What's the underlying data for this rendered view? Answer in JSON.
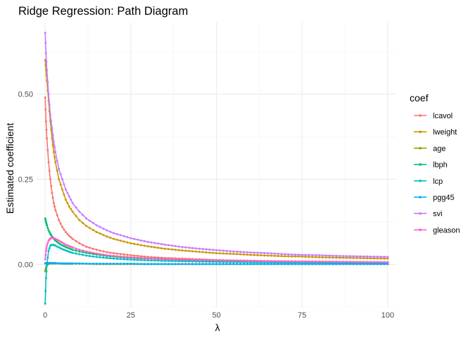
{
  "chart_data": {
    "type": "line",
    "title": "Ridge Regression: Path Diagram",
    "xlabel": "λ",
    "ylabel": "Estimated coefficient",
    "xlim": [
      -2.5,
      102.5
    ],
    "ylim": [
      -0.125,
      0.71
    ],
    "x_ticks": [
      0,
      25,
      50,
      75,
      100
    ],
    "x_tick_labels": [
      "0",
      "25",
      "50",
      "75",
      "100"
    ],
    "y_ticks": [
      0.0,
      0.25,
      0.5
    ],
    "y_tick_labels": [
      "0.00",
      "0.25",
      "0.50"
    ],
    "grid": true,
    "legend_title": "coef",
    "legend_position": "right",
    "x": [
      0,
      0.25,
      0.5,
      1,
      1.5,
      2,
      2.5,
      3,
      4,
      5,
      6,
      7,
      8,
      10,
      12,
      15,
      18,
      20,
      25,
      30,
      35,
      40,
      45,
      50,
      55,
      60,
      65,
      70,
      75,
      80,
      85,
      90,
      95,
      100
    ],
    "series": [
      {
        "name": "lcavol",
        "color": "#F8766D",
        "values": [
          0.49,
          0.42,
          0.37,
          0.3,
          0.25,
          0.21,
          0.18,
          0.16,
          0.13,
          0.11,
          0.095,
          0.084,
          0.075,
          0.062,
          0.052,
          0.043,
          0.036,
          0.033,
          0.027,
          0.022,
          0.019,
          0.017,
          0.015,
          0.013,
          0.012,
          0.011,
          0.01,
          0.0095,
          0.009,
          0.0085,
          0.008,
          0.0075,
          0.007,
          0.0068
        ]
      },
      {
        "name": "lweight",
        "color": "#CD9600",
        "values": [
          0.6,
          0.57,
          0.54,
          0.48,
          0.42,
          0.37,
          0.33,
          0.3,
          0.25,
          0.22,
          0.19,
          0.17,
          0.155,
          0.13,
          0.113,
          0.095,
          0.082,
          0.075,
          0.062,
          0.053,
          0.046,
          0.041,
          0.037,
          0.033,
          0.031,
          0.028,
          0.026,
          0.024,
          0.023,
          0.021,
          0.02,
          0.019,
          0.018,
          0.017
        ]
      },
      {
        "name": "age",
        "color": "#7CAE00",
        "values": [
          -0.02,
          -0.01,
          -0.003,
          0.002,
          0.003,
          0.003,
          0.003,
          0.003,
          0.003,
          0.002,
          0.002,
          0.002,
          0.002,
          0.002,
          0.002,
          0.001,
          0.001,
          0.001,
          0.001,
          0.001,
          0.001,
          0.001,
          0.001,
          0.001,
          0.001,
          0.001,
          0.001,
          0.001,
          0.001,
          0.001,
          0.001,
          0.001,
          0.001,
          0.001
        ]
      },
      {
        "name": "lbph",
        "color": "#00BE67",
        "values": [
          0.135,
          0.125,
          0.115,
          0.1,
          0.09,
          0.082,
          0.076,
          0.07,
          0.062,
          0.056,
          0.051,
          0.047,
          0.043,
          0.038,
          0.034,
          0.029,
          0.025,
          0.023,
          0.019,
          0.017,
          0.015,
          0.013,
          0.012,
          0.011,
          0.01,
          0.0093,
          0.0086,
          0.008,
          0.0075,
          0.0071,
          0.0067,
          0.0063,
          0.006,
          0.0057
        ]
      },
      {
        "name": "lcp",
        "color": "#00BFC4",
        "values": [
          -0.115,
          -0.04,
          0.0,
          0.04,
          0.055,
          0.058,
          0.057,
          0.055,
          0.05,
          0.045,
          0.041,
          0.037,
          0.034,
          0.03,
          0.026,
          0.022,
          0.019,
          0.017,
          0.014,
          0.012,
          0.0105,
          0.0093,
          0.0084,
          0.0076,
          0.007,
          0.0064,
          0.0059,
          0.0055,
          0.0052,
          0.0049,
          0.0046,
          0.0043,
          0.0041,
          0.0039
        ]
      },
      {
        "name": "pgg45",
        "color": "#00A9FF",
        "values": [
          0.003,
          0.004,
          0.004,
          0.004,
          0.004,
          0.004,
          0.004,
          0.004,
          0.003,
          0.003,
          0.003,
          0.003,
          0.003,
          0.003,
          0.002,
          0.002,
          0.002,
          0.002,
          0.002,
          0.001,
          0.001,
          0.001,
          0.001,
          0.001,
          0.001,
          0.001,
          0.001,
          0.001,
          0.001,
          0.001,
          0.001,
          0.001,
          0.001,
          0.001
        ]
      },
      {
        "name": "svi",
        "color": "#C77CFF",
        "values": [
          0.68,
          0.62,
          0.57,
          0.5,
          0.44,
          0.4,
          0.36,
          0.33,
          0.28,
          0.25,
          0.22,
          0.2,
          0.18,
          0.155,
          0.135,
          0.115,
          0.1,
          0.092,
          0.077,
          0.066,
          0.058,
          0.051,
          0.046,
          0.042,
          0.038,
          0.035,
          0.033,
          0.03,
          0.028,
          0.027,
          0.025,
          0.024,
          0.023,
          0.022
        ]
      },
      {
        "name": "gleason",
        "color": "#FF61CC",
        "values": [
          0.015,
          0.04,
          0.055,
          0.07,
          0.076,
          0.078,
          0.077,
          0.075,
          0.07,
          0.064,
          0.058,
          0.054,
          0.05,
          0.043,
          0.038,
          0.032,
          0.027,
          0.025,
          0.021,
          0.018,
          0.016,
          0.014,
          0.013,
          0.012,
          0.011,
          0.0102,
          0.0095,
          0.0089,
          0.0084,
          0.0079,
          0.0075,
          0.0071,
          0.0067,
          0.0064
        ]
      }
    ]
  }
}
